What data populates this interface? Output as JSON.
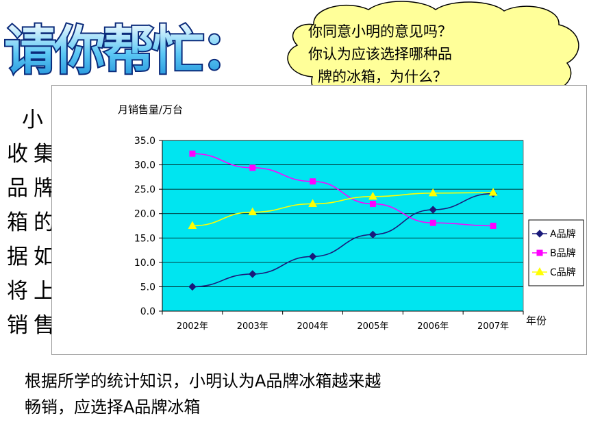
{
  "heading": {
    "text": "请你帮忙："
  },
  "bubble": {
    "lines": [
      "你同意小明的意见吗？",
      "你认为应该选择哪种品",
      "牌的冰箱，为什么？"
    ]
  },
  "side_text": {
    "lines": [
      "小",
      "收集",
      "品牌",
      "箱的",
      "据如",
      "将上",
      "销售"
    ]
  },
  "conclusion": {
    "lines": [
      "根据所学的统计知识，小明认为A品牌冰箱越来越",
      "畅销，应选择A品牌冰箱"
    ]
  },
  "chart_data": {
    "type": "line",
    "ylabel": "月销售量/万台",
    "xlabel": "年份",
    "categories": [
      "2002年",
      "2003年",
      "2004年",
      "2005年",
      "2006年",
      "2007年"
    ],
    "ylim": [
      0,
      35
    ],
    "yticks": [
      "0.0",
      "5.0",
      "10.0",
      "15.0",
      "20.0",
      "25.0",
      "30.0",
      "35.0"
    ],
    "grid": true,
    "legend_position": "right",
    "plot_background": "#00e5f0",
    "series": [
      {
        "name": "A品牌",
        "color": "#1a1a7a",
        "marker": "diamond",
        "values": [
          5,
          7.6,
          11.2,
          15.7,
          20.8,
          24.1
        ]
      },
      {
        "name": "B品牌",
        "color": "#ff00ff",
        "marker": "square",
        "values": [
          32.3,
          29.4,
          26.6,
          22,
          18.1,
          17.5
        ]
      },
      {
        "name": "C品牌",
        "color": "#ffff00",
        "marker": "triangle",
        "values": [
          17.5,
          20.3,
          22,
          23.5,
          24.2,
          24.3
        ]
      }
    ]
  }
}
